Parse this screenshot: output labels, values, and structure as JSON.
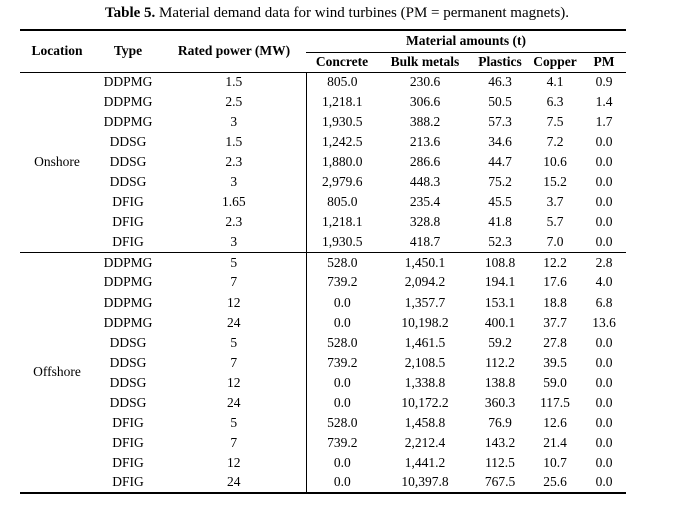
{
  "caption": {
    "label": "Table 5.",
    "text": "Material demand data for wind turbines (PM = permanent magnets)."
  },
  "table": {
    "headers": {
      "location": "Location",
      "type": "Type",
      "rated_power": "Rated power (MW)",
      "material_amounts": "Material amounts (t)",
      "concrete": "Concrete",
      "bulk_metals": "Bulk metals",
      "plastics": "Plastics",
      "copper": "Copper",
      "pm": "PM"
    },
    "groups": [
      {
        "location": "Onshore",
        "rows": [
          [
            "DDPMG",
            "1.5",
            "805.0",
            "230.6",
            "46.3",
            "4.1",
            "0.9"
          ],
          [
            "DDPMG",
            "2.5",
            "1,218.1",
            "306.6",
            "50.5",
            "6.3",
            "1.4"
          ],
          [
            "DDPMG",
            "3",
            "1,930.5",
            "388.2",
            "57.3",
            "7.5",
            "1.7"
          ],
          [
            "DDSG",
            "1.5",
            "1,242.5",
            "213.6",
            "34.6",
            "7.2",
            "0.0"
          ],
          [
            "DDSG",
            "2.3",
            "1,880.0",
            "286.6",
            "44.7",
            "10.6",
            "0.0"
          ],
          [
            "DDSG",
            "3",
            "2,979.6",
            "448.3",
            "75.2",
            "15.2",
            "0.0"
          ],
          [
            "DFIG",
            "1.65",
            "805.0",
            "235.4",
            "45.5",
            "3.7",
            "0.0"
          ],
          [
            "DFIG",
            "2.3",
            "1,218.1",
            "328.8",
            "41.8",
            "5.7",
            "0.0"
          ],
          [
            "DFIG",
            "3",
            "1,930.5",
            "418.7",
            "52.3",
            "7.0",
            "0.0"
          ]
        ]
      },
      {
        "location": "Offshore",
        "rows": [
          [
            "DDPMG",
            "5",
            "528.0",
            "1,450.1",
            "108.8",
            "12.2",
            "2.8"
          ],
          [
            "DDPMG",
            "7",
            "739.2",
            "2,094.2",
            "194.1",
            "17.6",
            "4.0"
          ],
          [
            "DDPMG",
            "12",
            "0.0",
            "1,357.7",
            "153.1",
            "18.8",
            "6.8"
          ],
          [
            "DDPMG",
            "24",
            "0.0",
            "10,198.2",
            "400.1",
            "37.7",
            "13.6"
          ],
          [
            "DDSG",
            "5",
            "528.0",
            "1,461.5",
            "59.2",
            "27.8",
            "0.0"
          ],
          [
            "DDSG",
            "7",
            "739.2",
            "2,108.5",
            "112.2",
            "39.5",
            "0.0"
          ],
          [
            "DDSG",
            "12",
            "0.0",
            "1,338.8",
            "138.8",
            "59.0",
            "0.0"
          ],
          [
            "DDSG",
            "24",
            "0.0",
            "10,172.2",
            "360.3",
            "117.5",
            "0.0"
          ],
          [
            "DFIG",
            "5",
            "528.0",
            "1,458.8",
            "76.9",
            "12.6",
            "0.0"
          ],
          [
            "DFIG",
            "7",
            "739.2",
            "2,212.4",
            "143.2",
            "21.4",
            "0.0"
          ],
          [
            "DFIG",
            "12",
            "0.0",
            "1,441.2",
            "112.5",
            "10.7",
            "0.0"
          ],
          [
            "DFIG",
            "24",
            "0.0",
            "10,397.8",
            "767.5",
            "25.6",
            "0.0"
          ]
        ]
      }
    ]
  }
}
